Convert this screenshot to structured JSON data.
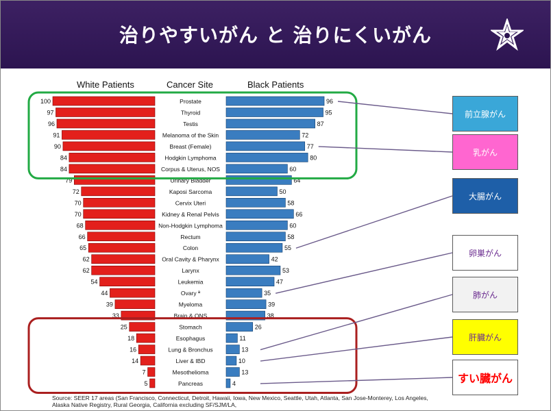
{
  "slide": {
    "title": "治りやすいがん と 治りにくいがん",
    "logo_icon": "star-logo-icon"
  },
  "chart_data": {
    "type": "bar",
    "columns": [
      "White Patients",
      "Cancer Site",
      "Black Patients"
    ],
    "categories": [
      "Prostate",
      "Thyroid",
      "Testis",
      "Melanoma of the Skin",
      "Breast (Female)",
      "Hodgkin Lymphoma",
      "Corpus & Uterus, NOS",
      "Urinary Bladder",
      "Kaposi Sarcoma",
      "Cervix Uteri",
      "Kidney & Renal Pelvis",
      "Non-Hodgkin Lymphoma",
      "Rectum",
      "Colon",
      "Oral Cavity & Pharynx",
      "Larynx",
      "Leukemia",
      "Ovary ª",
      "Myeloma",
      "Brain & ONS",
      "Stomach",
      "Esophagus",
      "Lung & Bronchus",
      "Liver & IBD",
      "Mesothelioma",
      "Pancreas"
    ],
    "series": [
      {
        "name": "White Patients",
        "color": "#e3201c",
        "values": [
          100,
          97,
          96,
          91,
          90,
          84,
          84,
          79,
          72,
          70,
          70,
          68,
          66,
          65,
          62,
          62,
          54,
          44,
          39,
          33,
          25,
          18,
          16,
          14,
          7,
          5
        ]
      },
      {
        "name": "Black Patients",
        "color": "#3a7dc0",
        "values": [
          96,
          95,
          87,
          72,
          77,
          80,
          60,
          64,
          50,
          58,
          66,
          60,
          58,
          55,
          42,
          53,
          47,
          35,
          39,
          38,
          26,
          11,
          13,
          10,
          13,
          4
        ]
      }
    ],
    "source": "Source: SEER 17 areas (San Francisco, Connecticut, Detroit, Hawaii, Iowa, New Mexico, Seattle, Utah, Atlanta, San Jose-Monterey, Los Angeles, Alaska Native Registry, Rural Georgia, California excluding SF/SJM/LA,"
  },
  "callouts": [
    {
      "label": "前立腺がん",
      "bg": "#3aa7d8",
      "fg": "#ffffff",
      "bold": false,
      "row": 0
    },
    {
      "label": "乳がん",
      "bg": "#ff66d0",
      "fg": "#ffffff",
      "bold": false,
      "row": 4
    },
    {
      "label": "大腸がん",
      "bg": "#1e5fa8",
      "fg": "#ffffff",
      "bold": false,
      "row": 13
    },
    {
      "label": "卵巣がん",
      "bg": "#ffffff",
      "fg": "#6a2b8f",
      "bold": false,
      "row": 17
    },
    {
      "label": "肺がん",
      "bg": "#f2f2f2",
      "fg": "#6a2b8f",
      "bold": false,
      "row": 22
    },
    {
      "label": "肝臓がん",
      "bg": "#ffff00",
      "fg": "#6a2b8f",
      "bold": false,
      "row": 23
    },
    {
      "label": "すい臓がん",
      "bg": "#ffffff",
      "fg": "#ff0000",
      "bold": true,
      "row": 25
    }
  ],
  "highlight_boxes": [
    {
      "name": "high-survival-box",
      "color": "#22aa44",
      "rows": [
        0,
        6
      ]
    },
    {
      "name": "low-survival-box",
      "color": "#aa1f1f",
      "rows": [
        20,
        25
      ]
    }
  ]
}
